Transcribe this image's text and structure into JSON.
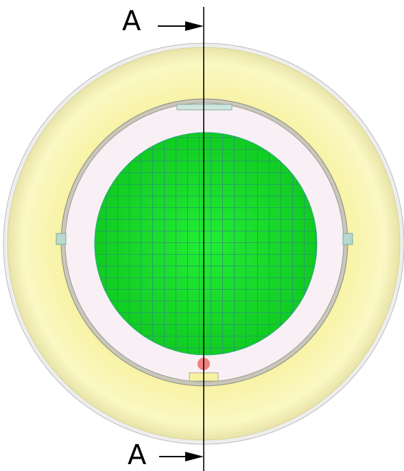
{
  "section_labels": {
    "top": "A",
    "bottom": "A"
  }
}
